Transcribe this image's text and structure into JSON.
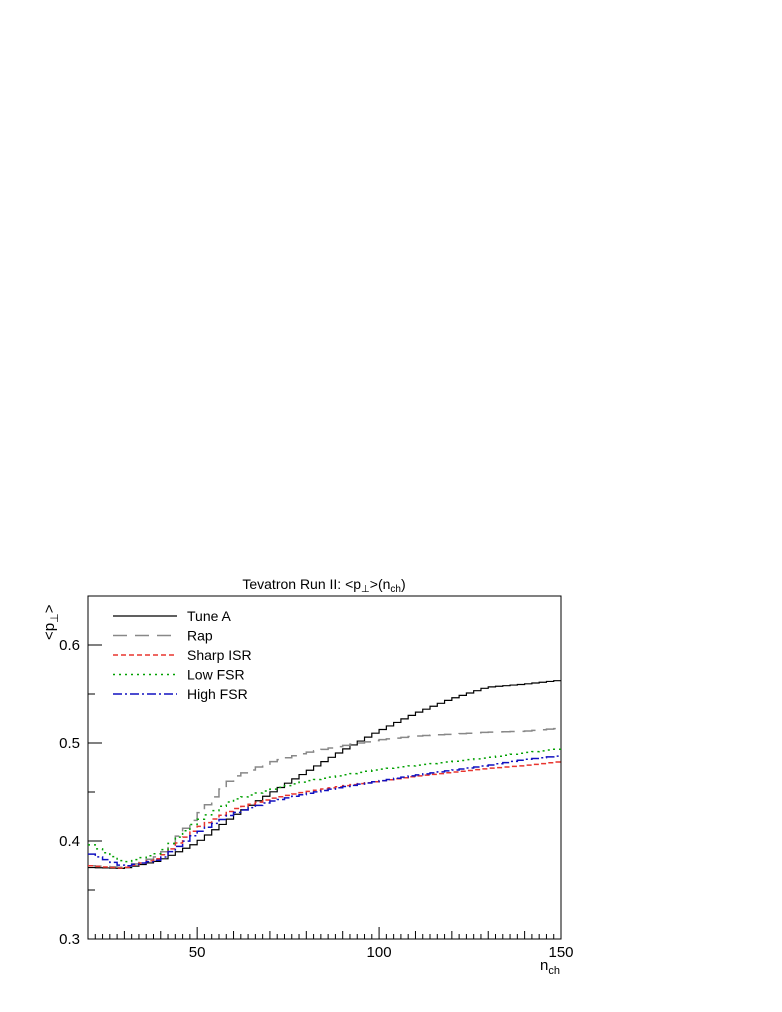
{
  "chart_data": {
    "type": "line",
    "title": {
      "main": "Tevatron Run II: <p",
      "sub": "⊥",
      "mid": ">(n",
      "sub2": "ch",
      "end": ")"
    },
    "xlabel": {
      "main": "n",
      "sub": "ch"
    },
    "ylabel": {
      "main": "<p",
      "sub": "⊥",
      "end": ">"
    },
    "xlim": [
      20,
      150
    ],
    "ylim": [
      0.3,
      0.65
    ],
    "xticks": [
      50,
      100,
      150
    ],
    "yticks": [
      0.3,
      0.4,
      0.5,
      0.6
    ],
    "xtick_labels": [
      "50",
      "100",
      "150"
    ],
    "ytick_labels": [
      "0.3",
      "0.4",
      "0.5",
      "0.6"
    ],
    "legend_position": "top-left",
    "series": [
      {
        "name": "Tune A",
        "color": "#000000",
        "dash": "",
        "x": [
          20,
          30,
          40,
          50,
          60,
          70,
          80,
          90,
          100,
          110,
          120,
          130,
          140,
          150
        ],
        "y": [
          0.373,
          0.372,
          0.38,
          0.398,
          0.425,
          0.448,
          0.47,
          0.492,
          0.512,
          0.53,
          0.545,
          0.557,
          0.56,
          0.564
        ]
      },
      {
        "name": "Rap",
        "color": "#888888",
        "dash": "14,8",
        "x": [
          20,
          30,
          40,
          50,
          60,
          70,
          80,
          90,
          100,
          110,
          120,
          130,
          140,
          150
        ],
        "y": [
          0.375,
          0.373,
          0.385,
          0.425,
          0.465,
          0.48,
          0.49,
          0.497,
          0.503,
          0.507,
          0.509,
          0.511,
          0.512,
          0.515
        ]
      },
      {
        "name": "Sharp ISR",
        "color": "#e8352e",
        "dash": "5,3",
        "x": [
          20,
          30,
          40,
          50,
          60,
          70,
          80,
          90,
          100,
          110,
          120,
          130,
          140,
          150
        ],
        "y": [
          0.375,
          0.372,
          0.383,
          0.413,
          0.432,
          0.443,
          0.45,
          0.456,
          0.461,
          0.466,
          0.47,
          0.474,
          0.477,
          0.481
        ]
      },
      {
        "name": "Low FSR",
        "color": "#00a000",
        "dash": "2,4",
        "x": [
          20,
          30,
          40,
          50,
          60,
          70,
          80,
          90,
          100,
          110,
          120,
          130,
          140,
          150
        ],
        "y": [
          0.398,
          0.378,
          0.388,
          0.42,
          0.442,
          0.452,
          0.461,
          0.467,
          0.473,
          0.477,
          0.481,
          0.485,
          0.49,
          0.494
        ]
      },
      {
        "name": "High FSR",
        "color": "#1010c0",
        "dash": "9,3,2,3",
        "x": [
          20,
          30,
          40,
          50,
          60,
          70,
          80,
          90,
          100,
          110,
          120,
          130,
          140,
          150
        ],
        "y": [
          0.388,
          0.374,
          0.381,
          0.408,
          0.428,
          0.44,
          0.448,
          0.455,
          0.461,
          0.467,
          0.472,
          0.477,
          0.483,
          0.487
        ]
      }
    ]
  }
}
